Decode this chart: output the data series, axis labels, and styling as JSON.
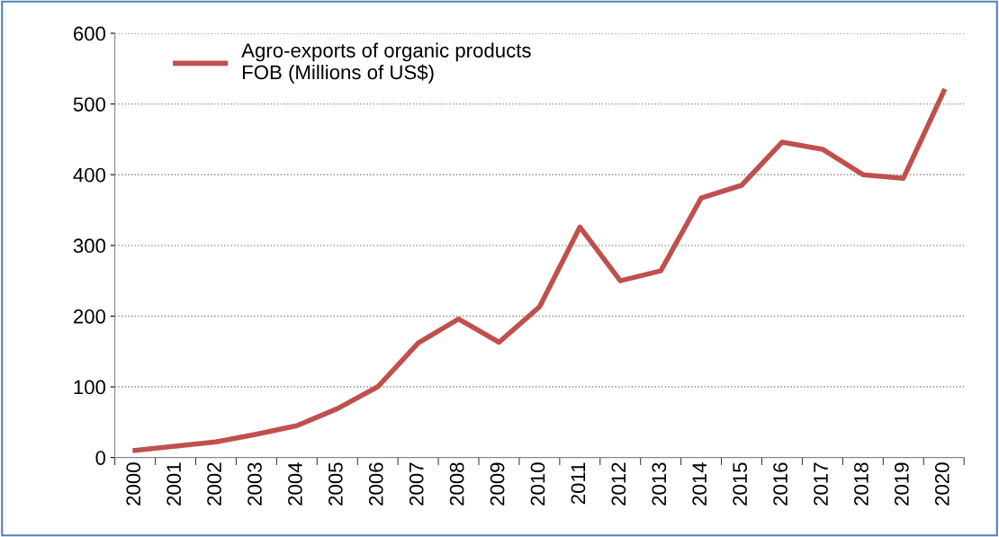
{
  "chart_data": {
    "type": "line",
    "categories": [
      "2000",
      "2001",
      "2002",
      "2003",
      "2004",
      "2005",
      "2006",
      "2007",
      "2008",
      "2009",
      "2010",
      "2011",
      "2012",
      "2013",
      "2014",
      "2015",
      "2016",
      "2017",
      "2018",
      "2019",
      "2020"
    ],
    "series": [
      {
        "name": "Agro-exports of organic products\nFOB (Millions of US$)",
        "color": "#c0504d",
        "values": [
          10,
          16,
          22,
          33,
          45,
          69,
          100,
          162,
          196,
          163,
          213,
          326,
          250,
          264,
          367,
          385,
          446,
          436,
          400,
          395,
          518
        ]
      }
    ],
    "ylim": [
      0,
      600
    ],
    "yticks": [
      0,
      100,
      200,
      300,
      400,
      500,
      600
    ],
    "grid": "y",
    "legend": "top left",
    "marker": "none",
    "line_style": "solid"
  }
}
